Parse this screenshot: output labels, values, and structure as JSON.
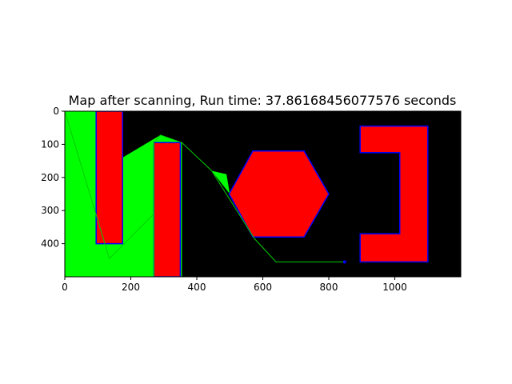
{
  "chart_data": {
    "type": "image",
    "title": "Map after scanning, Run time: 37.86168456077576 seconds",
    "xlabel": "",
    "ylabel": "",
    "xlim": [
      0,
      1200
    ],
    "ylim": [
      500,
      0
    ],
    "y_inverted": true,
    "grid": false,
    "xticks": [
      0,
      200,
      400,
      600,
      800,
      1000
    ],
    "yticks": [
      0,
      100,
      200,
      300,
      400
    ],
    "colors": {
      "background": "#000000",
      "scanned_area": "#00ff00",
      "obstacle_fill": "#ff0000",
      "obstacle_edge": "#0000ff",
      "path": "#00cc00",
      "goal_marker": "#0000ff"
    },
    "scanned_region": [
      [
        0,
        0
      ],
      [
        95,
        0
      ],
      [
        95,
        400
      ],
      [
        175,
        400
      ],
      [
        175,
        140
      ],
      [
        290,
        72
      ],
      [
        355,
        95
      ],
      [
        445,
        180
      ],
      [
        490,
        190
      ],
      [
        500,
        250
      ],
      [
        575,
        385
      ],
      [
        500,
        250
      ],
      [
        445,
        180
      ],
      [
        355,
        95
      ],
      [
        355,
        500
      ],
      [
        0,
        500
      ]
    ],
    "obstacles": [
      {
        "name": "left-bar",
        "points": [
          [
            95,
            0
          ],
          [
            175,
            0
          ],
          [
            175,
            400
          ],
          [
            95,
            400
          ]
        ]
      },
      {
        "name": "middle-bar",
        "points": [
          [
            270,
            95
          ],
          [
            350,
            95
          ],
          [
            350,
            500
          ],
          [
            270,
            500
          ]
        ]
      },
      {
        "name": "hexagon",
        "points": [
          [
            498,
            250
          ],
          [
            570,
            120
          ],
          [
            725,
            120
          ],
          [
            800,
            250
          ],
          [
            725,
            380
          ],
          [
            570,
            380
          ]
        ]
      },
      {
        "name": "bracket",
        "points": [
          [
            895,
            45
          ],
          [
            1100,
            45
          ],
          [
            1100,
            455
          ],
          [
            895,
            455
          ],
          [
            895,
            370
          ],
          [
            1015,
            370
          ],
          [
            1015,
            125
          ],
          [
            895,
            125
          ]
        ]
      }
    ],
    "path": [
      [
        0,
        0
      ],
      [
        135,
        445
      ],
      [
        270,
        310
      ],
      [
        270,
        500
      ],
      [
        270,
        95
      ],
      [
        290,
        72
      ],
      [
        355,
        95
      ],
      [
        445,
        180
      ],
      [
        575,
        385
      ],
      [
        640,
        455
      ],
      [
        848,
        455
      ]
    ],
    "goal": [
      848,
      455
    ]
  }
}
